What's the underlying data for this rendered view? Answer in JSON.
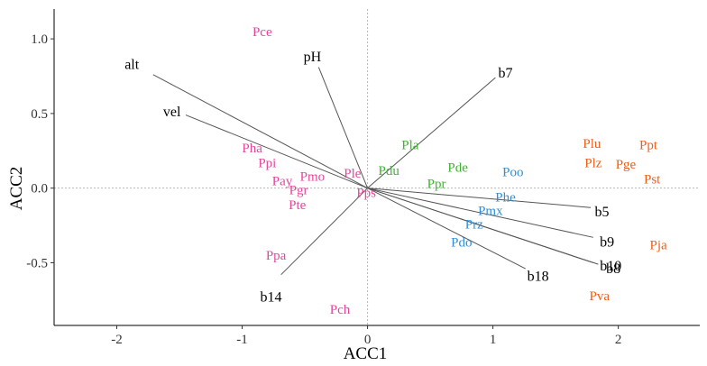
{
  "chart_data": {
    "type": "scatter",
    "subtype": "ordination-biplot",
    "title": "",
    "xlabel": "ACC1",
    "ylabel": "ACC2",
    "xlim": [
      -2.5,
      2.65
    ],
    "ylim": [
      -0.92,
      1.2
    ],
    "xticks": [
      {
        "value": -2,
        "label": "-2"
      },
      {
        "value": -1,
        "label": "-1"
      },
      {
        "value": 0,
        "label": "0"
      },
      {
        "value": 1,
        "label": "1"
      },
      {
        "value": 2,
        "label": "2"
      }
    ],
    "yticks": [
      {
        "value": 1.0,
        "label": "1.0"
      },
      {
        "value": 0.5,
        "label": "0.5"
      },
      {
        "value": 0.0,
        "label": "0.0"
      },
      {
        "value": -0.5,
        "label": "-0.5"
      }
    ],
    "reference_lines": {
      "x": 0,
      "y": 0
    },
    "group_colors": {
      "pink": "#e8449c",
      "green": "#3bb52c",
      "blue": "#2f8fd8",
      "orange": "#f05d16"
    },
    "env_vectors": [
      {
        "name": "alt",
        "x": -1.71,
        "y": 0.76,
        "lx": -1.88,
        "ly": 0.83
      },
      {
        "name": "pH",
        "x": -0.39,
        "y": 0.81,
        "lx": -0.44,
        "ly": 0.88
      },
      {
        "name": "b7",
        "x": 1.02,
        "y": 0.74,
        "lx": 1.1,
        "ly": 0.77
      },
      {
        "name": "vel",
        "x": -1.45,
        "y": 0.49,
        "lx": -1.56,
        "ly": 0.51
      },
      {
        "name": "b5",
        "x": 1.78,
        "y": -0.13,
        "lx": 1.87,
        "ly": -0.16
      },
      {
        "name": "b9",
        "x": 1.8,
        "y": -0.33,
        "lx": 1.91,
        "ly": -0.36
      },
      {
        "name": "b10",
        "x": 1.8,
        "y": -0.5,
        "lx": 1.94,
        "ly": -0.52
      },
      {
        "name": "b8",
        "x": 1.84,
        "y": -0.51,
        "lx": 1.96,
        "ly": -0.54
      },
      {
        "name": "b18",
        "x": 1.26,
        "y": -0.54,
        "lx": 1.36,
        "ly": -0.59
      },
      {
        "name": "b14",
        "x": -0.69,
        "y": -0.58,
        "lx": -0.77,
        "ly": -0.73
      }
    ],
    "species": [
      {
        "name": "Pce",
        "x": -0.84,
        "y": 1.05,
        "group": "pink"
      },
      {
        "name": "Pha",
        "x": -0.92,
        "y": 0.27,
        "group": "pink"
      },
      {
        "name": "Ppi",
        "x": -0.8,
        "y": 0.17,
        "group": "pink"
      },
      {
        "name": "Pmo",
        "x": -0.44,
        "y": 0.08,
        "group": "pink"
      },
      {
        "name": "Ple",
        "x": -0.12,
        "y": 0.1,
        "group": "pink"
      },
      {
        "name": "Pay",
        "x": -0.68,
        "y": 0.05,
        "group": "pink"
      },
      {
        "name": "Pgr",
        "x": -0.55,
        "y": -0.01,
        "group": "pink"
      },
      {
        "name": "Pps",
        "x": -0.01,
        "y": -0.03,
        "group": "pink"
      },
      {
        "name": "Pte",
        "x": -0.56,
        "y": -0.11,
        "group": "pink"
      },
      {
        "name": "Ppa",
        "x": -0.73,
        "y": -0.45,
        "group": "pink"
      },
      {
        "name": "Pch",
        "x": -0.22,
        "y": -0.81,
        "group": "pink"
      },
      {
        "name": "Pla",
        "x": 0.34,
        "y": 0.29,
        "group": "green"
      },
      {
        "name": "Pdu",
        "x": 0.17,
        "y": 0.12,
        "group": "green"
      },
      {
        "name": "Pde",
        "x": 0.72,
        "y": 0.14,
        "group": "green"
      },
      {
        "name": "Ppr",
        "x": 0.55,
        "y": 0.03,
        "group": "green"
      },
      {
        "name": "Poo",
        "x": 1.16,
        "y": 0.11,
        "group": "blue"
      },
      {
        "name": "Phe",
        "x": 1.1,
        "y": -0.06,
        "group": "blue"
      },
      {
        "name": "Pmx",
        "x": 0.98,
        "y": -0.15,
        "group": "blue"
      },
      {
        "name": "Prz",
        "x": 0.85,
        "y": -0.24,
        "group": "blue"
      },
      {
        "name": "Pdo",
        "x": 0.75,
        "y": -0.36,
        "group": "blue"
      },
      {
        "name": "Plu",
        "x": 1.79,
        "y": 0.3,
        "group": "orange"
      },
      {
        "name": "Ppt",
        "x": 2.24,
        "y": 0.29,
        "group": "orange"
      },
      {
        "name": "Plz",
        "x": 1.8,
        "y": 0.17,
        "group": "orange"
      },
      {
        "name": "Pge",
        "x": 2.06,
        "y": 0.16,
        "group": "orange"
      },
      {
        "name": "Pst",
        "x": 2.27,
        "y": 0.06,
        "group": "orange"
      },
      {
        "name": "Pja",
        "x": 2.32,
        "y": -0.38,
        "group": "orange"
      },
      {
        "name": "Pva",
        "x": 1.85,
        "y": -0.72,
        "group": "orange"
      }
    ]
  }
}
